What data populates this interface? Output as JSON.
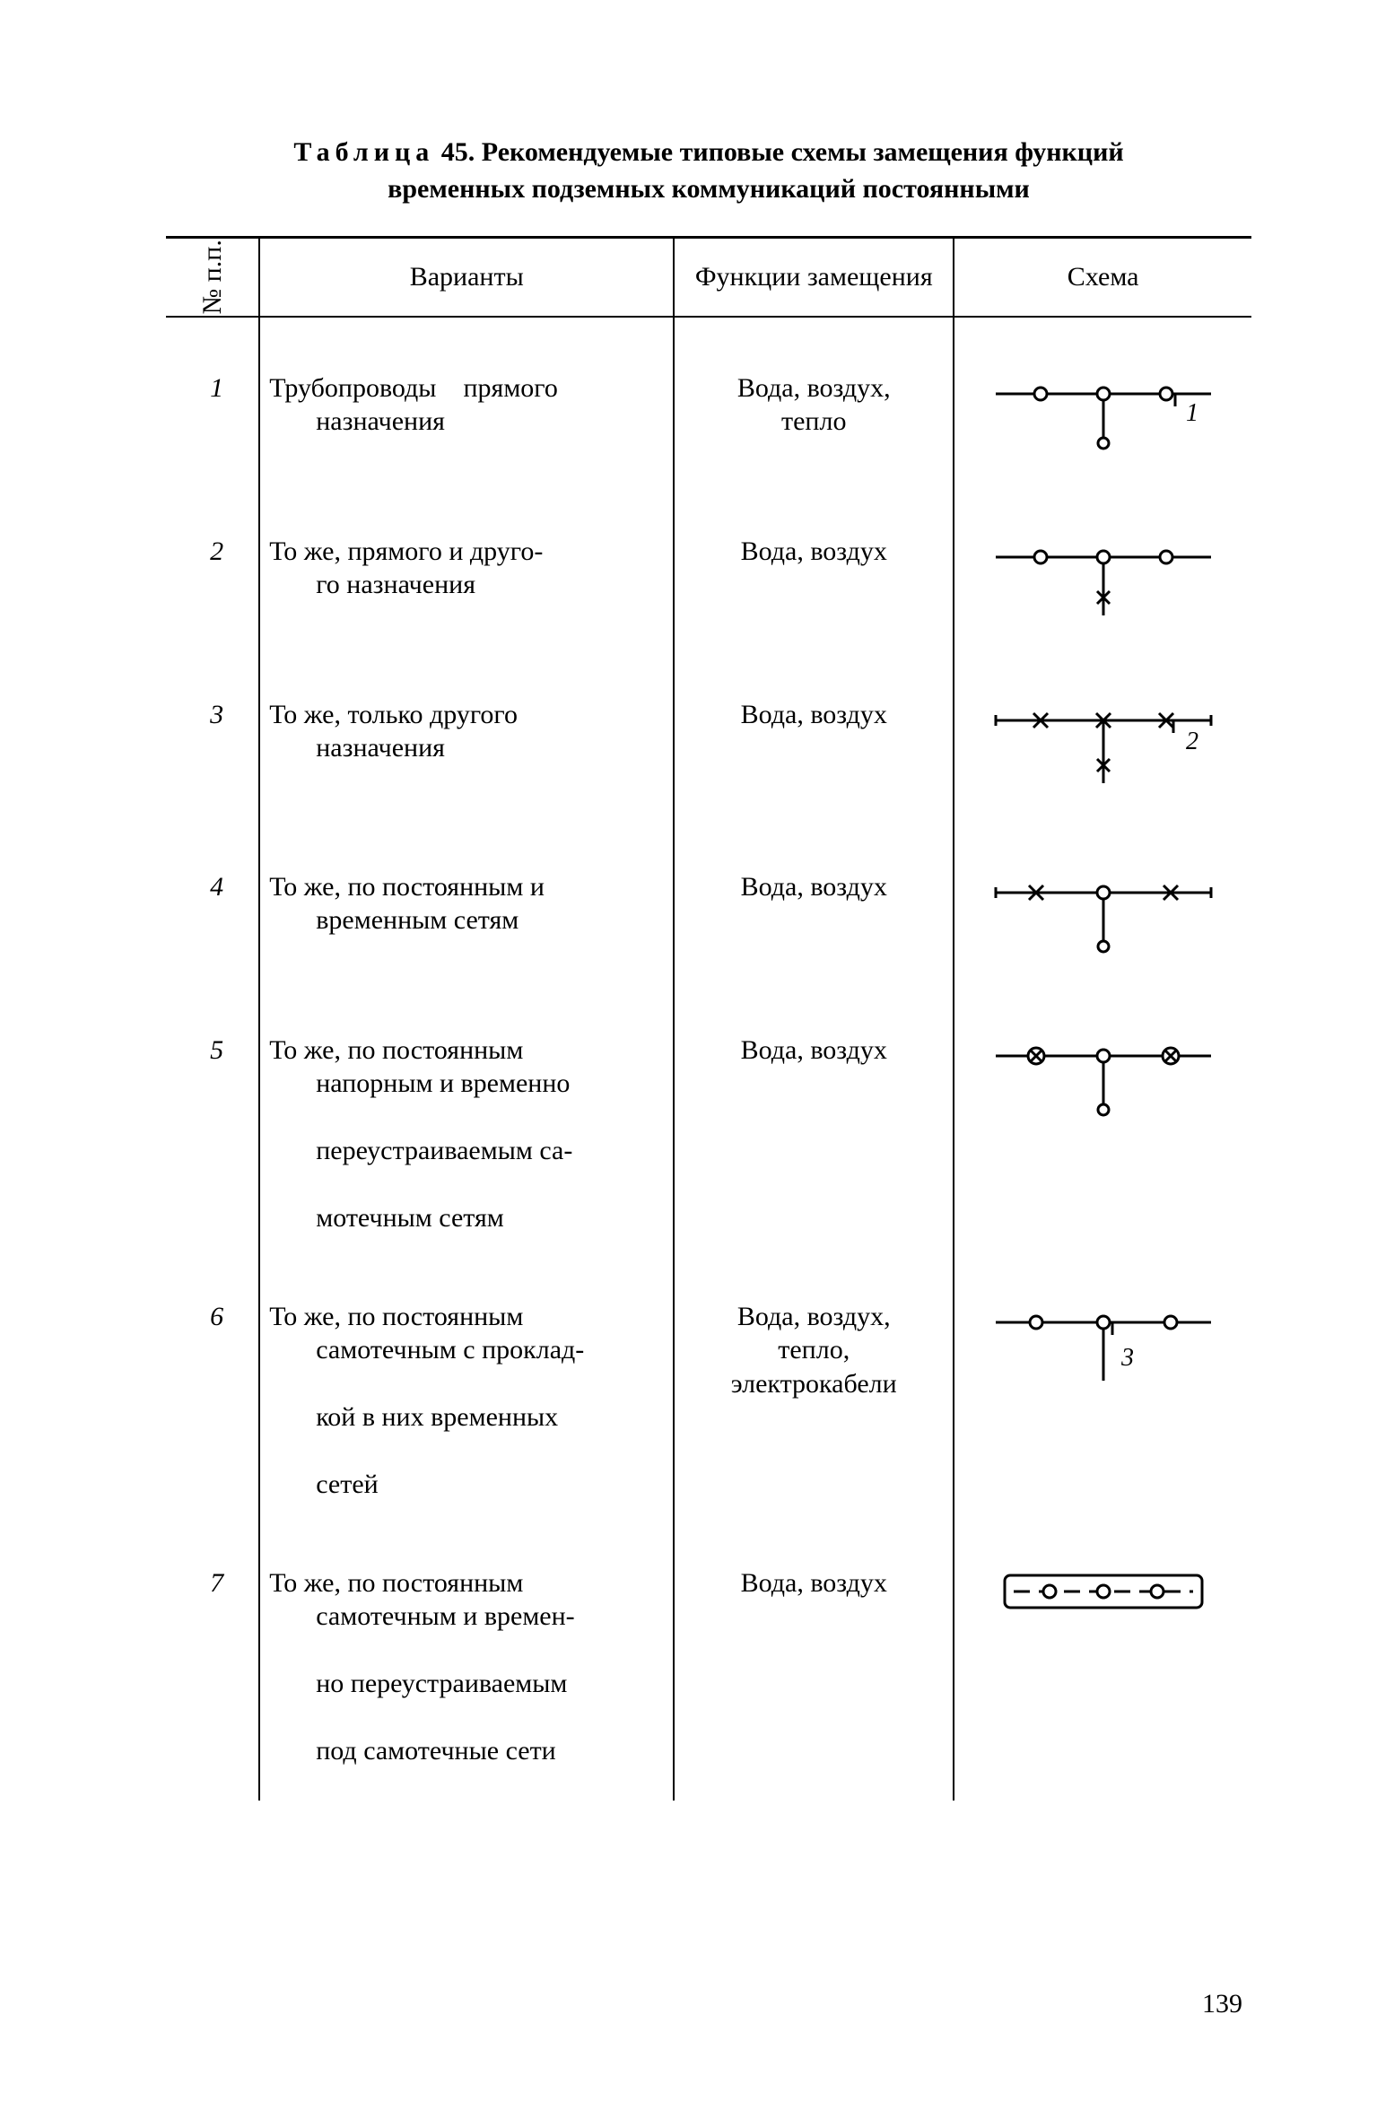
{
  "title_line1_prefix": "Таблица",
  "title_line1_number": "45.",
  "title_line1_rest": "Рекомендуемые типовые схемы замещения функций",
  "title_line2": "временных подземных коммуникаций постоянными",
  "headers": {
    "num": "№ п.п.",
    "variants": "Варианты",
    "functions": "Функции замещения",
    "scheme": "Схема"
  },
  "rows": [
    {
      "n": "1",
      "variant_l1": "Трубопроводы      прямого",
      "variant_l2": "назначения",
      "func_l1": "Вода, воздух,",
      "func_l2": "тепло",
      "func_l3": "",
      "diagram": 1
    },
    {
      "n": "2",
      "variant_l1": "То же, прямого и друго-",
      "variant_l2": "го назначения",
      "func_l1": "Вода, воздух",
      "func_l2": "",
      "func_l3": "",
      "diagram": 2
    },
    {
      "n": "3",
      "variant_l1": "То же, только другого",
      "variant_l2": "назначения",
      "func_l1": "Вода, воздух",
      "func_l2": "",
      "func_l3": "",
      "diagram": 3
    },
    {
      "n": "4",
      "variant_l1": "То же, по постоянным и",
      "variant_l2": "временным сетям",
      "func_l1": "Вода, воздух",
      "func_l2": "",
      "func_l3": "",
      "diagram": 4
    },
    {
      "n": "5",
      "variant_l1": "То же, по постоянным",
      "variant_l2": "напорным и временно",
      "variant_l3": "переустраиваемым са-",
      "variant_l4": "мотечным сетям",
      "func_l1": "Вода, воздух",
      "func_l2": "",
      "func_l3": "",
      "diagram": 5
    },
    {
      "n": "6",
      "variant_l1": "То же, по постоянным",
      "variant_l2": "самотечным с проклад-",
      "variant_l3": "кой в них временных",
      "variant_l4": "сетей",
      "func_l1": "Вода, воздух,",
      "func_l2": "тепло,",
      "func_l3": "электрокабели",
      "diagram": 6
    },
    {
      "n": "7",
      "variant_l1": "То же, по постоянным",
      "variant_l2": "самотечным и времен-",
      "variant_l3": "но переустраиваемым",
      "variant_l4": "под самотечные сети",
      "func_l1": "Вода, воздух",
      "func_l2": "",
      "func_l3": "",
      "diagram": 7
    }
  ],
  "page_number": "139",
  "style": {
    "stroke": "#000000",
    "stroke_width": 3,
    "node_r": 7
  }
}
